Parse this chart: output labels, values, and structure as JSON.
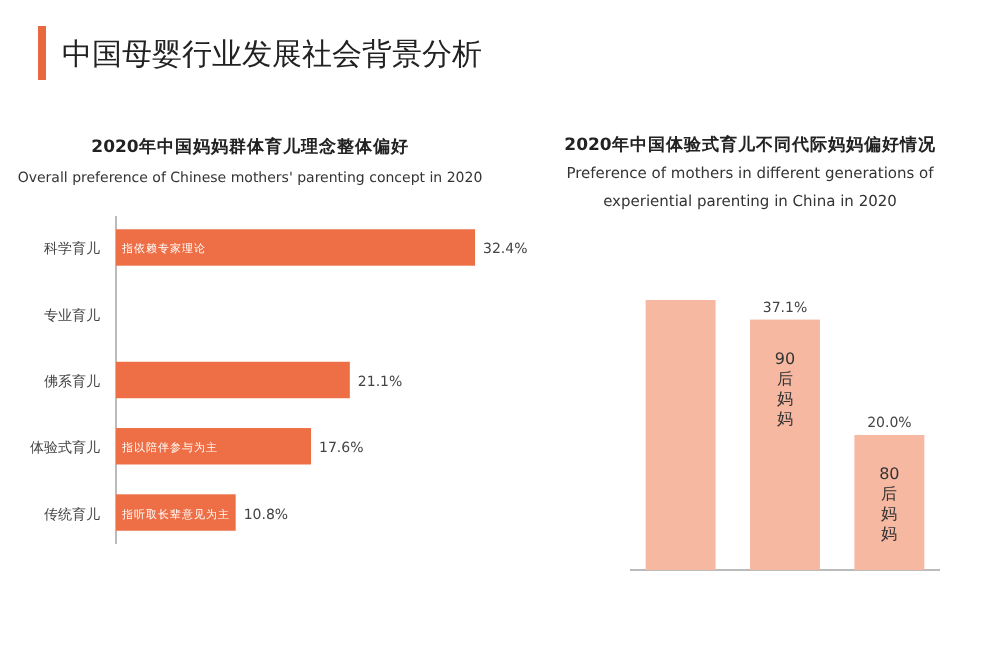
{
  "chart_data": [
    {
      "type": "bar",
      "orientation": "horizontal",
      "title": "2020年中国妈妈群体育儿理念整体偏好",
      "subtitle": "Overall preference of Chinese mothers' parenting concept in 2020",
      "categories": [
        "科学育儿",
        "专业育儿",
        "佛系育儿",
        "体验式育儿",
        "传统育儿"
      ],
      "values": [
        32.4,
        null,
        21.1,
        17.6,
        10.8
      ],
      "color": "#ee6f45",
      "value_labels": [
        "32.4%",
        null,
        "21.1%",
        "17.6%",
        "10.8%"
      ],
      "annotations": [
        "中国母婴行业发展社会背景分析",
        "指依赖专家理论",
        null,
        null,
        "指以陪伴参与为主",
        "指听取长辈意见为主"
      ]
    },
    {
      "type": "bar",
      "title": "2020年中国体验式育儿不同代际妈妈偏好情况",
      "subtitle": "Preference of mothers in different generations of experiential parenting in China in 2020",
      "categories": [
        null,
        "90后妈妈",
        "80后妈妈"
      ],
      "values": [
        40,
        37.1,
        20.0
      ],
      "color": "#f7b8a2",
      "value_labels": [
        null,
        "37.1%",
        "20.0%"
      ]
    }
  ]
}
